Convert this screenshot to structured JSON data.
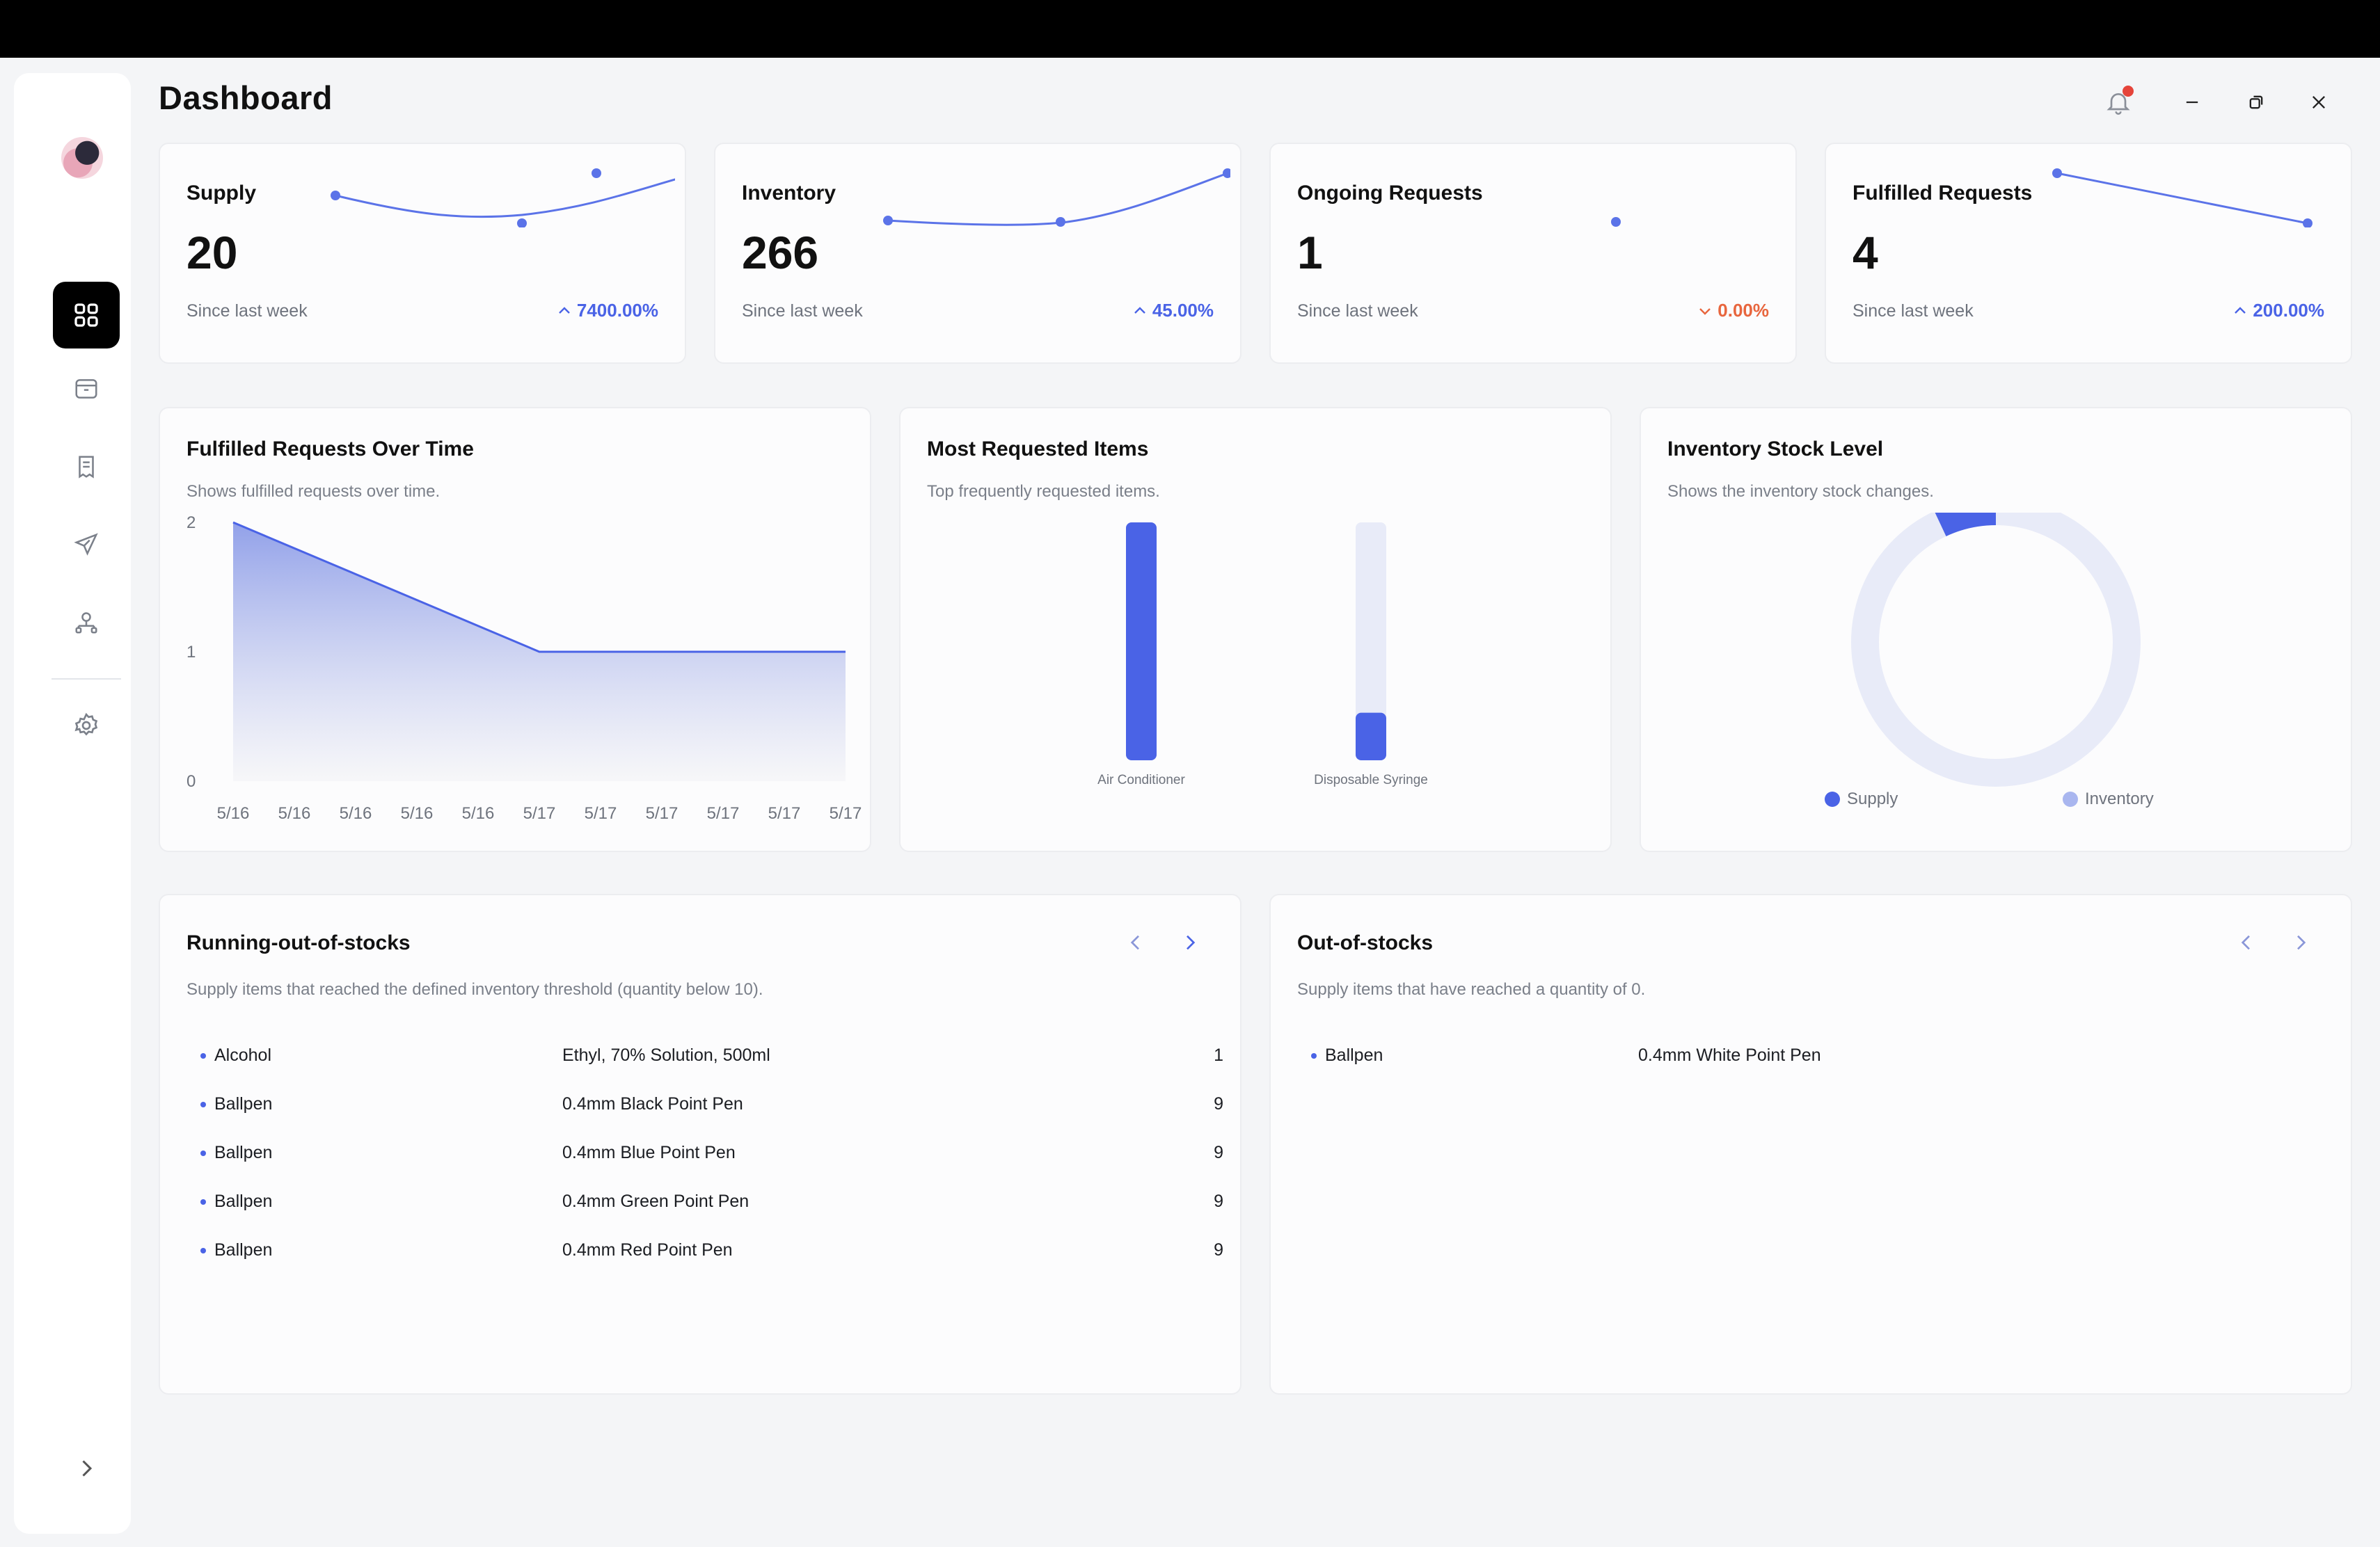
{
  "header": {
    "title": "Dashboard"
  },
  "sidebar": {
    "items": [
      {
        "name": "dashboard",
        "icon": "grid-icon",
        "active": true
      },
      {
        "name": "supplies",
        "icon": "box-icon"
      },
      {
        "name": "inventory",
        "icon": "receipt-icon"
      },
      {
        "name": "requests",
        "icon": "send-icon"
      },
      {
        "name": "users",
        "icon": "users-network-icon"
      },
      {
        "name": "settings",
        "icon": "gear-icon"
      }
    ]
  },
  "stats": [
    {
      "title": "Supply",
      "value": "20",
      "since": "Since last week",
      "change": "7400.00%",
      "direction": "up"
    },
    {
      "title": "Inventory",
      "value": "266",
      "since": "Since last week",
      "change": "45.00%",
      "direction": "up"
    },
    {
      "title": "Ongoing Requests",
      "value": "1",
      "since": "Since last week",
      "change": "0.00%",
      "direction": "down"
    },
    {
      "title": "Fulfilled Requests",
      "value": "4",
      "since": "Since last week",
      "change": "200.00%",
      "direction": "up"
    }
  ],
  "fulfilled_over_time": {
    "title": "Fulfilled Requests Over Time",
    "subtitle": "Shows fulfilled requests over time."
  },
  "most_requested": {
    "title": "Most Requested Items",
    "subtitle": "Top frequently requested items."
  },
  "stock_level": {
    "title": "Inventory Stock Level",
    "subtitle": "Shows the inventory stock changes.",
    "legend": [
      "Supply",
      "Inventory"
    ]
  },
  "running_out": {
    "title": "Running-out-of-stocks",
    "subtitle": "Supply items that reached the defined inventory threshold (quantity below 10).",
    "rows": [
      {
        "name": "Alcohol",
        "desc": "Ethyl, 70% Solution, 500ml",
        "qty": "1"
      },
      {
        "name": "Ballpen",
        "desc": "0.4mm Black Point Pen",
        "qty": "9"
      },
      {
        "name": "Ballpen",
        "desc": "0.4mm Blue Point Pen",
        "qty": "9"
      },
      {
        "name": "Ballpen",
        "desc": "0.4mm Green Point Pen",
        "qty": "9"
      },
      {
        "name": "Ballpen",
        "desc": "0.4mm Red Point Pen",
        "qty": "9"
      }
    ]
  },
  "out_of_stock": {
    "title": "Out-of-stocks",
    "subtitle": "Supply items that have reached a quantity of 0.",
    "rows": [
      {
        "name": "Ballpen",
        "desc": "0.4mm White Point Pen"
      }
    ]
  },
  "colors": {
    "accent": "#4a63e6",
    "accent_light": "#e8ebf8",
    "negative": "#e8663e",
    "notification": "#e5443a"
  },
  "chart_data": [
    {
      "type": "area",
      "title": "Fulfilled Requests Over Time",
      "x": [
        "5/16",
        "5/16",
        "5/16",
        "5/16",
        "5/16",
        "5/17",
        "5/17",
        "5/17",
        "5/17",
        "5/17",
        "5/17"
      ],
      "values": [
        2,
        null,
        null,
        null,
        null,
        1,
        null,
        null,
        null,
        null,
        1
      ],
      "yticks": [
        0,
        1,
        2
      ],
      "ylim": [
        0,
        2
      ]
    },
    {
      "type": "bar",
      "title": "Most Requested Items",
      "categories": [
        "Air Conditioner",
        "Disposable Syringe"
      ],
      "values": [
        1.0,
        0.2
      ],
      "max": 1.0
    },
    {
      "type": "pie",
      "title": "Inventory Stock Level",
      "categories": [
        "Supply",
        "Inventory"
      ],
      "values": [
        20,
        266
      ]
    }
  ]
}
